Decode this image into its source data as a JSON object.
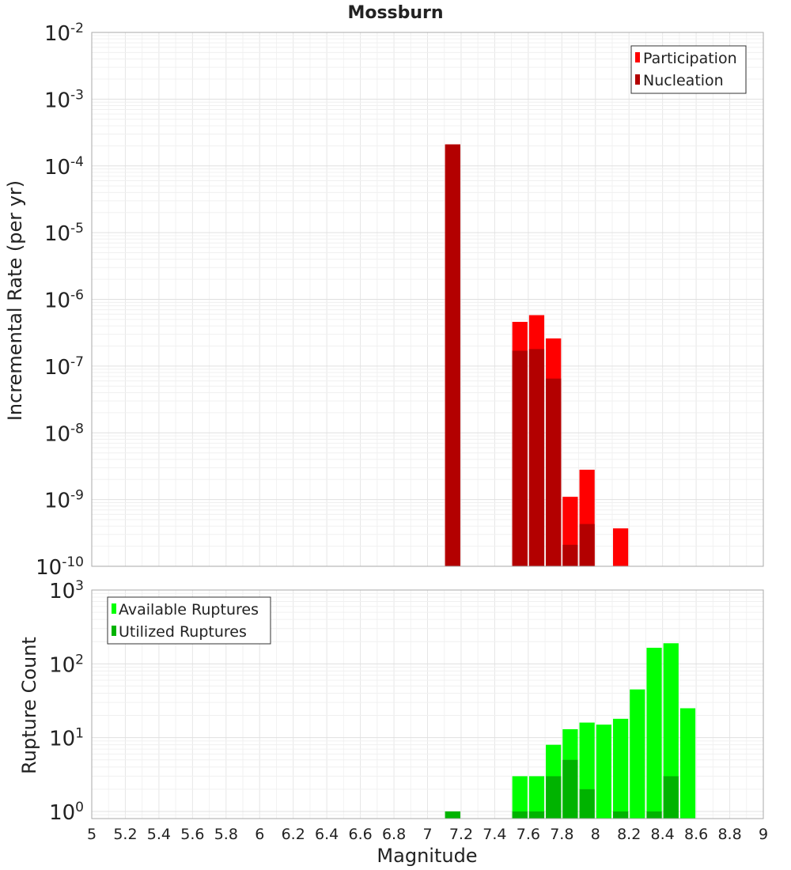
{
  "chart_data": [
    {
      "type": "bar",
      "title": "Mossburn",
      "xlabel": "Magnitude",
      "ylabel": "Incremental Rate (per yr)",
      "y_scale": "log",
      "ylim": [
        1e-10,
        0.01
      ],
      "xlim": [
        5,
        9
      ],
      "bin_width": 0.1,
      "grid": true,
      "legend_position": "top-right",
      "y_ticks": [
        {
          "base": "10",
          "exp": "-10",
          "value": 1e-10
        },
        {
          "base": "10",
          "exp": "-9",
          "value": 1e-09
        },
        {
          "base": "10",
          "exp": "-8",
          "value": 1e-08
        },
        {
          "base": "10",
          "exp": "-7",
          "value": 1e-07
        },
        {
          "base": "10",
          "exp": "-6",
          "value": 1e-06
        },
        {
          "base": "10",
          "exp": "-5",
          "value": 1e-05
        },
        {
          "base": "10",
          "exp": "-4",
          "value": 0.0001
        },
        {
          "base": "10",
          "exp": "-3",
          "value": 0.001
        },
        {
          "base": "10",
          "exp": "-2",
          "value": 0.01
        }
      ],
      "series": [
        {
          "name": "Participation",
          "color": "#ff0000",
          "x": [
            7.15,
            7.55,
            7.65,
            7.75,
            7.85,
            7.95,
            8.15
          ],
          "values": [
            0.00021,
            4.6e-07,
            5.8e-07,
            2.6e-07,
            1.1e-09,
            2.8e-09,
            3.7e-10
          ]
        },
        {
          "name": "Nucleation",
          "color": "#b30000",
          "x": [
            7.15,
            7.55,
            7.65,
            7.75,
            7.85,
            7.95
          ],
          "values": [
            0.00021,
            1.7e-07,
            1.8e-07,
            6.5e-08,
            2.1e-10,
            4.3e-10
          ]
        }
      ]
    },
    {
      "type": "bar",
      "title": "",
      "xlabel": "Magnitude",
      "ylabel": "Rupture Count",
      "y_scale": "log",
      "ylim": [
        0.8,
        1000
      ],
      "xlim": [
        5,
        9
      ],
      "bin_width": 0.1,
      "grid": true,
      "legend_position": "top-left",
      "x_ticks": [
        "5",
        "5.2",
        "5.4",
        "5.6",
        "5.8",
        "6",
        "6.2",
        "6.4",
        "6.6",
        "6.8",
        "7",
        "7.2",
        "7.4",
        "7.6",
        "7.8",
        "8",
        "8.2",
        "8.4",
        "8.6",
        "8.8",
        "9"
      ],
      "y_ticks": [
        {
          "base": "10",
          "exp": "0",
          "value": 1
        },
        {
          "base": "10",
          "exp": "1",
          "value": 10
        },
        {
          "base": "10",
          "exp": "2",
          "value": 100
        },
        {
          "base": "10",
          "exp": "3",
          "value": 1000
        }
      ],
      "series": [
        {
          "name": "Available Ruptures",
          "color": "#00ff00",
          "x": [
            7.15,
            7.55,
            7.65,
            7.75,
            7.85,
            7.95,
            8.05,
            8.15,
            8.25,
            8.35,
            8.45,
            8.55
          ],
          "values": [
            1,
            3,
            3,
            8,
            13,
            16,
            15,
            18,
            45,
            165,
            190,
            25
          ]
        },
        {
          "name": "Utilized Ruptures",
          "color": "#00b300",
          "x": [
            7.15,
            7.55,
            7.65,
            7.75,
            7.85,
            7.95,
            8.05,
            8.15,
            8.25,
            8.35,
            8.45
          ],
          "values": [
            1,
            1,
            1,
            3,
            5,
            2,
            0,
            1,
            0,
            1,
            3
          ]
        }
      ]
    }
  ]
}
